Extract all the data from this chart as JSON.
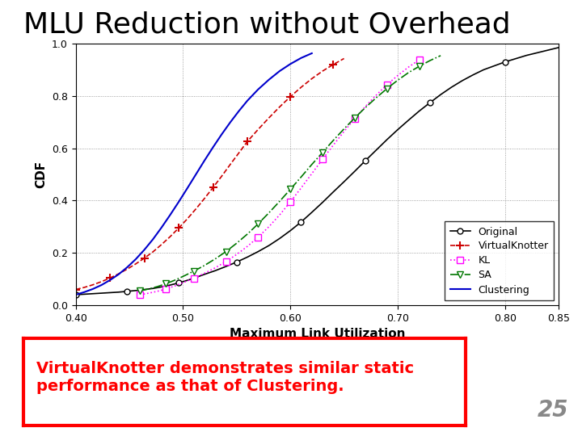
{
  "title": "MLU Reduction without Overhead",
  "xlabel": "Maximum Link Utilization",
  "ylabel": "CDF",
  "xlim": [
    0.4,
    0.85
  ],
  "ylim": [
    0,
    1.0
  ],
  "xticks": [
    0.4,
    0.5,
    0.6,
    0.7,
    0.8,
    0.85
  ],
  "yticks": [
    0,
    0.2,
    0.4,
    0.6,
    0.8,
    1
  ],
  "subtitle_text": "VirtualKnotter demonstrates similar static\nperformance as that of Clustering.",
  "slide_number": "25",
  "background_color": "#ffffff",
  "series": {
    "Original": {
      "color": "#000000",
      "linestyle": "-",
      "marker": "o",
      "markerfacecolor": "white",
      "markersize": 5,
      "linewidth": 1.2,
      "x": [
        0.4,
        0.408,
        0.416,
        0.424,
        0.432,
        0.44,
        0.448,
        0.456,
        0.464,
        0.472,
        0.48,
        0.488,
        0.496,
        0.504,
        0.512,
        0.52,
        0.53,
        0.54,
        0.55,
        0.56,
        0.57,
        0.58,
        0.59,
        0.6,
        0.61,
        0.62,
        0.63,
        0.64,
        0.65,
        0.66,
        0.67,
        0.68,
        0.69,
        0.7,
        0.71,
        0.72,
        0.73,
        0.74,
        0.75,
        0.76,
        0.77,
        0.78,
        0.8,
        0.82,
        0.84,
        0.85
      ],
      "y": [
        0.04,
        0.042,
        0.044,
        0.046,
        0.048,
        0.05,
        0.053,
        0.056,
        0.06,
        0.064,
        0.07,
        0.077,
        0.085,
        0.095,
        0.106,
        0.118,
        0.132,
        0.148,
        0.165,
        0.184,
        0.205,
        0.228,
        0.255,
        0.285,
        0.318,
        0.355,
        0.393,
        0.433,
        0.472,
        0.512,
        0.553,
        0.593,
        0.633,
        0.671,
        0.707,
        0.742,
        0.774,
        0.805,
        0.833,
        0.858,
        0.88,
        0.9,
        0.93,
        0.955,
        0.975,
        0.985
      ]
    },
    "VirtualKnotter": {
      "color": "#cc0000",
      "linestyle": "--",
      "marker": "+",
      "markerfacecolor": "#cc0000",
      "markersize": 7,
      "markeredgewidth": 1.5,
      "linewidth": 1.2,
      "x": [
        0.4,
        0.408,
        0.416,
        0.424,
        0.432,
        0.44,
        0.448,
        0.456,
        0.464,
        0.472,
        0.48,
        0.488,
        0.496,
        0.504,
        0.512,
        0.52,
        0.528,
        0.536,
        0.544,
        0.552,
        0.56,
        0.57,
        0.58,
        0.59,
        0.6,
        0.61,
        0.62,
        0.63,
        0.64,
        0.65
      ],
      "y": [
        0.06,
        0.068,
        0.078,
        0.09,
        0.104,
        0.12,
        0.138,
        0.158,
        0.18,
        0.204,
        0.232,
        0.262,
        0.295,
        0.33,
        0.368,
        0.408,
        0.45,
        0.493,
        0.538,
        0.582,
        0.626,
        0.672,
        0.716,
        0.758,
        0.797,
        0.833,
        0.866,
        0.895,
        0.92,
        0.943
      ]
    },
    "KL": {
      "color": "#ff00ff",
      "linestyle": ":",
      "marker": "s",
      "markerfacecolor": "white",
      "markeredgecolor": "#ff00ff",
      "markersize": 6,
      "linewidth": 1.2,
      "x": [
        0.46,
        0.468,
        0.476,
        0.484,
        0.492,
        0.5,
        0.51,
        0.52,
        0.53,
        0.54,
        0.55,
        0.56,
        0.57,
        0.58,
        0.59,
        0.6,
        0.61,
        0.62,
        0.63,
        0.64,
        0.65,
        0.66,
        0.67,
        0.68,
        0.69,
        0.7,
        0.71,
        0.72
      ],
      "y": [
        0.04,
        0.046,
        0.053,
        0.062,
        0.073,
        0.086,
        0.103,
        0.122,
        0.143,
        0.167,
        0.194,
        0.225,
        0.26,
        0.3,
        0.345,
        0.395,
        0.448,
        0.503,
        0.558,
        0.612,
        0.664,
        0.714,
        0.76,
        0.803,
        0.843,
        0.878,
        0.91,
        0.938
      ]
    },
    "SA": {
      "color": "#007700",
      "linestyle": "-.",
      "marker": "v",
      "markerfacecolor": "white",
      "markeredgecolor": "#007700",
      "markersize": 6,
      "linewidth": 1.2,
      "x": [
        0.46,
        0.468,
        0.476,
        0.484,
        0.492,
        0.5,
        0.51,
        0.52,
        0.53,
        0.54,
        0.55,
        0.56,
        0.57,
        0.58,
        0.59,
        0.6,
        0.61,
        0.62,
        0.63,
        0.64,
        0.65,
        0.66,
        0.67,
        0.68,
        0.69,
        0.7,
        0.71,
        0.72,
        0.73,
        0.74
      ],
      "y": [
        0.055,
        0.062,
        0.071,
        0.082,
        0.095,
        0.11,
        0.13,
        0.152,
        0.177,
        0.205,
        0.237,
        0.272,
        0.311,
        0.353,
        0.397,
        0.443,
        0.49,
        0.538,
        0.584,
        0.63,
        0.674,
        0.716,
        0.756,
        0.793,
        0.828,
        0.86,
        0.889,
        0.913,
        0.935,
        0.954
      ]
    },
    "Clustering": {
      "color": "#0000cc",
      "linestyle": "-",
      "linewidth": 1.5,
      "x": [
        0.4,
        0.408,
        0.416,
        0.424,
        0.432,
        0.44,
        0.448,
        0.456,
        0.464,
        0.472,
        0.48,
        0.488,
        0.496,
        0.504,
        0.512,
        0.52,
        0.528,
        0.536,
        0.544,
        0.552,
        0.56,
        0.57,
        0.58,
        0.59,
        0.6,
        0.61,
        0.62
      ],
      "y": [
        0.04,
        0.05,
        0.062,
        0.077,
        0.096,
        0.118,
        0.145,
        0.176,
        0.212,
        0.252,
        0.297,
        0.345,
        0.395,
        0.447,
        0.5,
        0.553,
        0.604,
        0.653,
        0.699,
        0.742,
        0.782,
        0.825,
        0.862,
        0.895,
        0.922,
        0.945,
        0.963
      ]
    }
  }
}
